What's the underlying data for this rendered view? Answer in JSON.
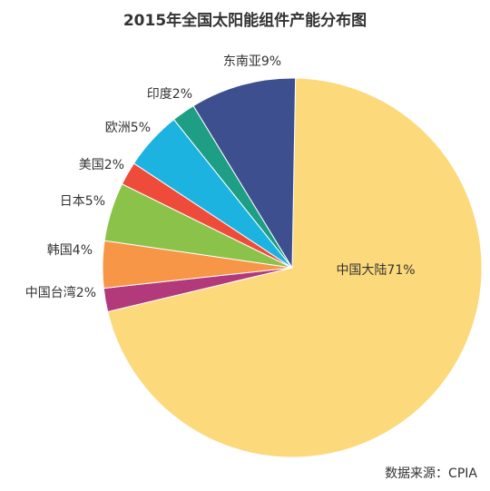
{
  "chart_data": {
    "type": "pie",
    "title": "2015年全国太阳能组件产能分布图",
    "unit": "%",
    "slices": [
      {
        "label": "中国大陆71%",
        "name": "中国大陆",
        "value": 71,
        "color": "#FCD97A"
      },
      {
        "label": "中国台湾2%",
        "name": "中国台湾",
        "value": 2,
        "color": "#B23A7A"
      },
      {
        "label": "韩国4%",
        "name": "韩国",
        "value": 4,
        "color": "#F79646"
      },
      {
        "label": "日本5%",
        "name": "日本",
        "value": 5,
        "color": "#8BC34A"
      },
      {
        "label": "美国2%",
        "name": "美国",
        "value": 2,
        "color": "#EF4B3A"
      },
      {
        "label": "欧洲5%",
        "name": "欧洲",
        "value": 5,
        "color": "#1CB3E0"
      },
      {
        "label": "印度2%",
        "name": "印度",
        "value": 2,
        "color": "#1E9E84"
      },
      {
        "label": "东南亚9%",
        "name": "东南亚",
        "value": 9,
        "color": "#3D4F8F"
      }
    ]
  },
  "source": "数据来源：CPIA"
}
